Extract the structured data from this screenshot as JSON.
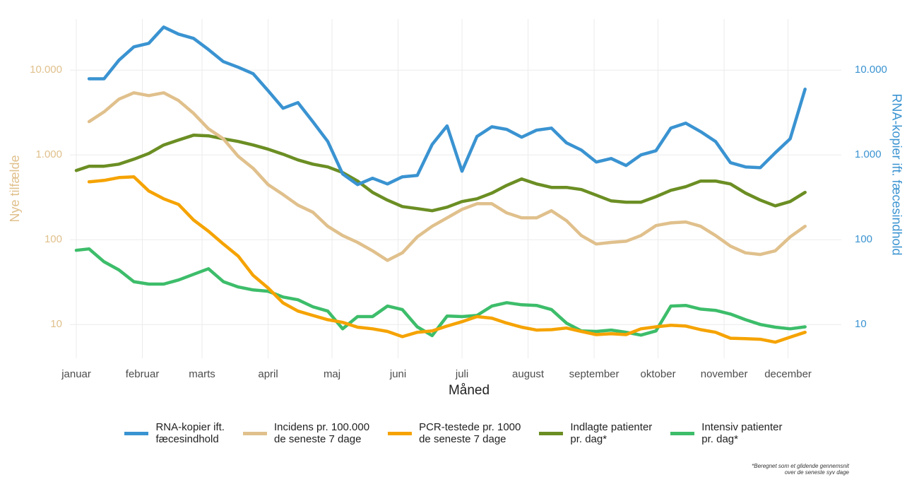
{
  "chart_data": {
    "type": "line",
    "log_scale": true,
    "grid": true,
    "legend_position": "bottom",
    "xlabel": "Måned",
    "ylabel": "Nye tilfælde",
    "y2label": "RNA-kopier ift. fæcesindhold",
    "xlim": [
      -2,
      360
    ],
    "xticks": [
      {
        "value": 1,
        "label": "januar"
      },
      {
        "value": 32,
        "label": "februar"
      },
      {
        "value": 60,
        "label": "marts"
      },
      {
        "value": 91,
        "label": "april"
      },
      {
        "value": 121,
        "label": "maj"
      },
      {
        "value": 152,
        "label": "juni"
      },
      {
        "value": 182,
        "label": "juli"
      },
      {
        "value": 213,
        "label": "august"
      },
      {
        "value": 244,
        "label": "september"
      },
      {
        "value": 274,
        "label": "oktober"
      },
      {
        "value": 305,
        "label": "november"
      },
      {
        "value": 335,
        "label": "december"
      }
    ],
    "ylim": [
      4,
      40000
    ],
    "yticks": [
      10,
      100,
      {
        "value": 1000,
        "label": "1.000"
      },
      {
        "value": 10000,
        "label": "10.000"
      }
    ],
    "y2lim": [
      4,
      40000
    ],
    "y2ticks": [
      10,
      100,
      {
        "value": 1000,
        "label": "1.000"
      },
      {
        "value": 10000,
        "label": "10.000"
      }
    ],
    "ylabel_color": "#e0c08c",
    "y2label_color": "#3a93d1",
    "x": [
      1,
      7,
      14,
      21,
      28,
      35,
      42,
      49,
      56,
      63,
      70,
      77,
      84,
      91,
      98,
      105,
      112,
      119,
      126,
      133,
      140,
      147,
      154,
      161,
      168,
      175,
      182,
      189,
      196,
      203,
      210,
      217,
      224,
      231,
      238,
      245,
      252,
      259,
      266,
      273,
      280,
      287,
      294,
      301,
      308,
      315,
      322,
      329,
      336,
      343
    ],
    "series": [
      {
        "name": "RNA-kopier ift.\nfæcesindhold",
        "color": "#3a93d1",
        "axis": "y2",
        "values": [
          null,
          7900,
          7900,
          13100,
          18800,
          20700,
          32200,
          26600,
          23700,
          17500,
          12600,
          10800,
          9080,
          5730,
          3550,
          4140,
          2460,
          1440,
          596,
          447,
          531,
          455,
          552,
          573,
          1330,
          2200,
          643,
          1650,
          2150,
          2000,
          1620,
          1960,
          2070,
          1390,
          1140,
          825,
          908,
          750,
          1000,
          1120,
          2070,
          2370,
          1880,
          1440,
          810,
          722,
          708,
          1060,
          1550,
          5960
        ]
      },
      {
        "name": "Incidens pr. 100.000\nde seneste 7 dage",
        "color": "#e0c08c",
        "values": [
          null,
          2470,
          3220,
          4550,
          5410,
          5010,
          5410,
          4380,
          3100,
          2030,
          1550,
          962,
          695,
          447,
          341,
          256,
          211,
          144,
          112,
          93,
          74,
          57,
          70,
          108,
          144,
          181,
          228,
          266,
          266,
          207,
          181,
          181,
          220,
          168,
          112,
          89,
          93,
          96,
          112,
          147,
          158,
          162,
          144,
          112,
          84,
          70,
          67,
          74,
          108,
          144
        ]
      },
      {
        "name": "PCR-testede pr. 1000\nde seneste 7 dage",
        "color": "#f5a300",
        "values": [
          null,
          482,
          501,
          541,
          552,
          376,
          304,
          261,
          171,
          126,
          89,
          64,
          38,
          27,
          18,
          14.4,
          12.8,
          11.4,
          10.6,
          9.3,
          8.9,
          8.3,
          7.2,
          8.1,
          8.4,
          9.6,
          10.8,
          12.4,
          11.9,
          10.4,
          9.3,
          8.6,
          8.7,
          9.1,
          8.3,
          7.6,
          7.8,
          7.6,
          8.9,
          9.4,
          9.8,
          9.6,
          8.7,
          8.1,
          6.9,
          6.8,
          6.7,
          6.2,
          7.1,
          8.1
        ]
      },
      {
        "name": "Indlagte patienter\npr. dag*",
        "color": "#6b8e23",
        "values": [
          655,
          736,
          736,
          779,
          891,
          1040,
          1310,
          1500,
          1710,
          1680,
          1550,
          1440,
          1310,
          1170,
          1020,
          874,
          779,
          722,
          619,
          492,
          362,
          293,
          246,
          233,
          220,
          242,
          282,
          304,
          355,
          438,
          521,
          455,
          414,
          414,
          391,
          335,
          287,
          277,
          277,
          322,
          383,
          422,
          492,
          492,
          455,
          355,
          293,
          251,
          282,
          362
        ]
      },
      {
        "name": "Intensiv patienter\npr. dag*",
        "color": "#3dbd6a",
        "values": [
          75,
          78,
          55,
          44,
          32,
          30,
          30,
          33.5,
          39.1,
          45.5,
          32,
          27.7,
          25.6,
          24.7,
          21.1,
          19.6,
          16.2,
          14.4,
          8.9,
          12.4,
          12.4,
          16.5,
          15,
          9.4,
          7.4,
          12.6,
          12.4,
          12.8,
          16.5,
          18.1,
          17.1,
          16.8,
          15,
          10.4,
          8.4,
          8.3,
          8.6,
          8.1,
          7.5,
          8.4,
          16.5,
          16.8,
          15.2,
          14.7,
          13.3,
          11.4,
          10,
          9.3,
          8.9,
          9.4
        ]
      }
    ],
    "footnote": "*Beregnet som et glidende gennemsnit\nover de seneste syv dage"
  }
}
